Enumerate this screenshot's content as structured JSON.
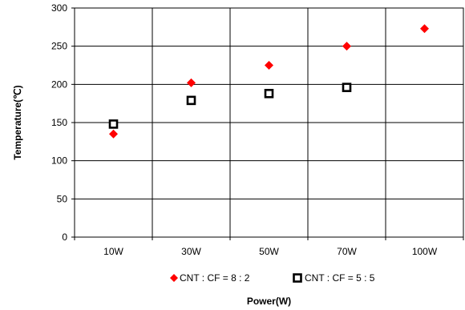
{
  "chart_data": {
    "type": "scatter",
    "categories": [
      "10W",
      "30W",
      "50W",
      "70W",
      "100W"
    ],
    "xlabel": "Power(W)",
    "ylabel": "Temperature(℃)",
    "ylim": [
      0,
      300
    ],
    "yticks": [
      0,
      50,
      100,
      150,
      200,
      250,
      300
    ],
    "grid": true,
    "legend_position": "bottom",
    "series": [
      {
        "name": "CNT : CF = 8 : 2",
        "legend_label": "CNT : CF = 8 : 2",
        "marker": "diamond",
        "color": "#ff0000",
        "values": [
          135,
          202,
          225,
          250,
          273
        ]
      },
      {
        "name": "CNT : CF = 5 : 5",
        "legend_label": "CNT : CF = 5 : 5",
        "marker": "square",
        "color": "#000000",
        "values": [
          148,
          179,
          188,
          196,
          null
        ]
      }
    ]
  }
}
